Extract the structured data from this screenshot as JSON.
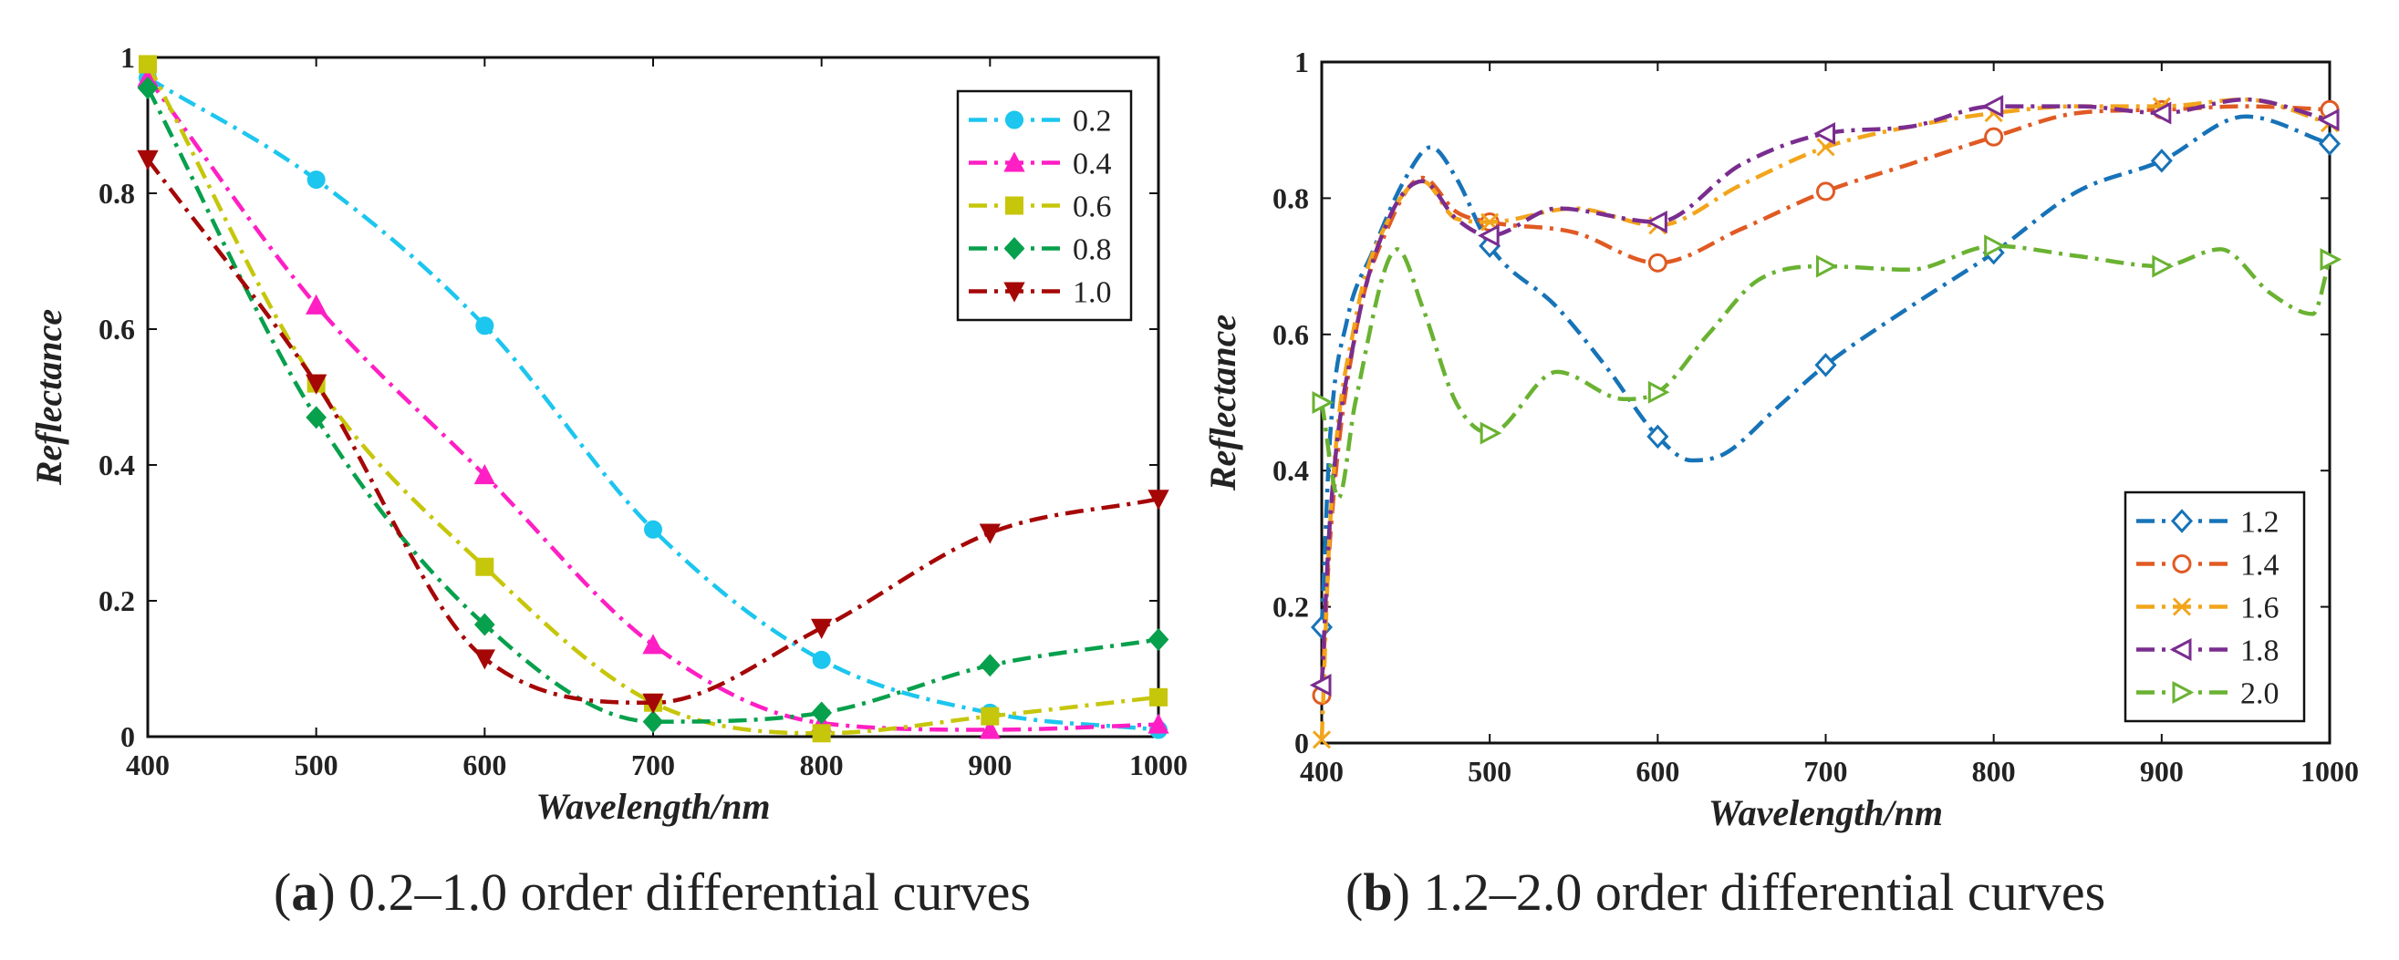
{
  "chart_data": [
    {
      "type": "line",
      "panel": "a",
      "caption_letter": "a",
      "caption_text": "0.2–1.0 order differential curves",
      "xlabel": "Wavelength/nm",
      "ylabel": "Reflectance",
      "xlim": [
        400,
        1000
      ],
      "ylim": [
        0,
        1
      ],
      "x_ticks": [
        "400",
        "500",
        "600",
        "700",
        "800",
        "900",
        "1000"
      ],
      "y_ticks": [
        "0",
        "0.2",
        "0.4",
        "0.6",
        "0.8",
        "1"
      ],
      "legend_position": "top-right",
      "x": [
        400,
        500,
        600,
        700,
        800,
        900,
        1000
      ],
      "series": [
        {
          "name": "0.2",
          "color": "#1cc6ee",
          "marker": "circle",
          "values": [
            0.97,
            0.82,
            0.605,
            0.305,
            0.113,
            0.035,
            0.01
          ]
        },
        {
          "name": "0.4",
          "color": "#ff1fc4",
          "marker": "triangle-up",
          "values": [
            0.97,
            0.635,
            0.385,
            0.135,
            0.02,
            0.01,
            0.018
          ]
        },
        {
          "name": "0.6",
          "color": "#c6c60b",
          "marker": "square",
          "values": [
            0.99,
            0.52,
            0.25,
            0.05,
            0.005,
            0.03,
            0.058
          ]
        },
        {
          "name": "0.8",
          "color": "#07a04c",
          "marker": "diamond",
          "values": [
            0.955,
            0.47,
            0.165,
            0.022,
            0.035,
            0.105,
            0.143
          ]
        },
        {
          "name": "1.0",
          "color": "#a50707",
          "marker": "triangle-down",
          "values": [
            0.85,
            0.52,
            0.115,
            0.05,
            0.16,
            0.3,
            0.35
          ]
        }
      ]
    },
    {
      "type": "line",
      "panel": "b",
      "caption_letter": "b",
      "caption_text": "1.2–2.0 order differential curves",
      "xlabel": "Wavelength/nm",
      "ylabel": "Reflectance",
      "xlim": [
        400,
        1000
      ],
      "ylim": [
        0,
        1
      ],
      "x_ticks": [
        "400",
        "500",
        "600",
        "700",
        "800",
        "900",
        "1000"
      ],
      "y_ticks": [
        "0",
        "0.2",
        "0.4",
        "0.6",
        "0.8",
        "1"
      ],
      "legend_position": "bottom-right",
      "series": [
        {
          "name": "1.2",
          "color": "#1773b8",
          "marker": "diamond-open",
          "x": [
            400,
            405,
            415,
            430,
            450,
            465,
            480,
            500,
            540,
            570,
            600,
            620,
            640,
            670,
            700,
            750,
            800,
            850,
            900,
            950,
            1000
          ],
          "values": [
            0.17,
            0.45,
            0.62,
            0.72,
            0.83,
            0.875,
            0.83,
            0.73,
            0.64,
            0.55,
            0.45,
            0.415,
            0.425,
            0.49,
            0.555,
            0.64,
            0.72,
            0.81,
            0.855,
            0.92,
            0.88
          ]
        },
        {
          "name": "1.4",
          "color": "#e05a23",
          "marker": "circle-open",
          "x": [
            400,
            405,
            420,
            440,
            460,
            480,
            500,
            550,
            600,
            650,
            700,
            750,
            800,
            850,
            900,
            950,
            1000
          ],
          "values": [
            0.07,
            0.3,
            0.6,
            0.76,
            0.83,
            0.78,
            0.765,
            0.75,
            0.705,
            0.755,
            0.81,
            0.85,
            0.89,
            0.925,
            0.93,
            0.935,
            0.93
          ]
        },
        {
          "name": "1.6",
          "color": "#f2a51c",
          "marker": "x",
          "x": [
            400,
            405,
            420,
            440,
            460,
            480,
            500,
            550,
            600,
            650,
            700,
            750,
            800,
            850,
            900,
            950,
            1000
          ],
          "values": [
            0.005,
            0.32,
            0.62,
            0.77,
            0.825,
            0.77,
            0.765,
            0.785,
            0.76,
            0.82,
            0.875,
            0.905,
            0.925,
            0.935,
            0.935,
            0.945,
            0.91
          ]
        },
        {
          "name": "1.8",
          "color": "#7a2d8f",
          "marker": "triangle-left-open",
          "x": [
            400,
            405,
            420,
            440,
            460,
            480,
            500,
            540,
            600,
            650,
            700,
            750,
            800,
            850,
            900,
            950,
            1000
          ],
          "values": [
            0.085,
            0.33,
            0.6,
            0.77,
            0.825,
            0.77,
            0.745,
            0.785,
            0.765,
            0.85,
            0.895,
            0.905,
            0.935,
            0.935,
            0.925,
            0.945,
            0.915
          ]
        },
        {
          "name": "2.0",
          "color": "#6ab232",
          "marker": "triangle-right-open",
          "x": [
            400,
            410,
            420,
            445,
            460,
            480,
            500,
            540,
            580,
            600,
            630,
            660,
            700,
            750,
            800,
            850,
            900,
            935,
            965,
            990,
            1000
          ],
          "values": [
            0.5,
            0.36,
            0.5,
            0.725,
            0.64,
            0.5,
            0.455,
            0.545,
            0.505,
            0.515,
            0.6,
            0.68,
            0.7,
            0.695,
            0.73,
            0.715,
            0.7,
            0.725,
            0.66,
            0.63,
            0.71
          ]
        }
      ]
    }
  ]
}
